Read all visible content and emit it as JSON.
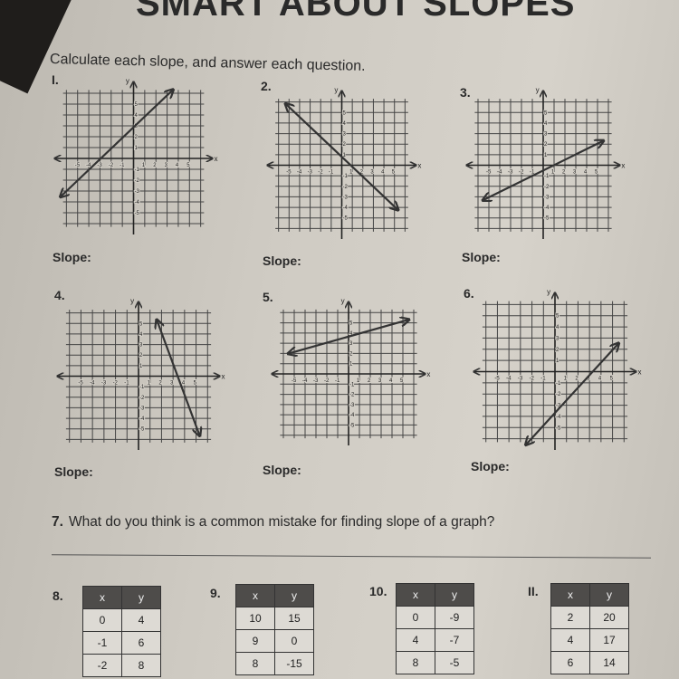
{
  "title": "SMART ABOUT SLOPES",
  "instructions": "Calculate each slope, and answer each question.",
  "slope_label": "Slope:",
  "graphs": [
    {
      "number": "I.",
      "line": [
        [
          -6.5,
          -3.5
        ],
        [
          3.5,
          6.3
        ]
      ]
    },
    {
      "number": "2.",
      "line": [
        [
          -5.3,
          5.8
        ],
        [
          5.3,
          -4.2
        ]
      ]
    },
    {
      "number": "3.",
      "line": [
        [
          -5.5,
          -3.3
        ],
        [
          5.5,
          2.3
        ]
      ]
    },
    {
      "number": "4.",
      "line": [
        [
          1.6,
          5.3
        ],
        [
          5.3,
          -5.6
        ]
      ]
    },
    {
      "number": "5.",
      "line": [
        [
          -5.5,
          2
        ],
        [
          5.5,
          5.3
        ]
      ]
    },
    {
      "number": "6.",
      "line": [
        [
          -2.5,
          -6.5
        ],
        [
          5.5,
          2.5
        ]
      ]
    }
  ],
  "axis": {
    "x_label": "x",
    "y_label": "y",
    "ticks": [
      -5,
      -4,
      -3,
      -2,
      -1,
      1,
      2,
      3,
      4,
      5
    ]
  },
  "question7": {
    "number": "7.",
    "text": "What do you think is a common mistake for finding slope of a graph?"
  },
  "tables": [
    {
      "number": "8.",
      "headers": [
        "x",
        "y"
      ],
      "rows": [
        [
          "0",
          "4"
        ],
        [
          "-1",
          "6"
        ],
        [
          "-2",
          "8"
        ]
      ]
    },
    {
      "number": "9.",
      "headers": [
        "x",
        "y"
      ],
      "rows": [
        [
          "10",
          "15"
        ],
        [
          "9",
          "0"
        ],
        [
          "8",
          "-15"
        ]
      ]
    },
    {
      "number": "10.",
      "headers": [
        "x",
        "y"
      ],
      "rows": [
        [
          "0",
          "-9"
        ],
        [
          "4",
          "-7"
        ],
        [
          "8",
          "-5"
        ]
      ]
    },
    {
      "number": "II.",
      "headers": [
        "x",
        "y"
      ],
      "rows": [
        [
          "2",
          "20"
        ],
        [
          "4",
          "17"
        ],
        [
          "6",
          "14"
        ]
      ]
    }
  ]
}
